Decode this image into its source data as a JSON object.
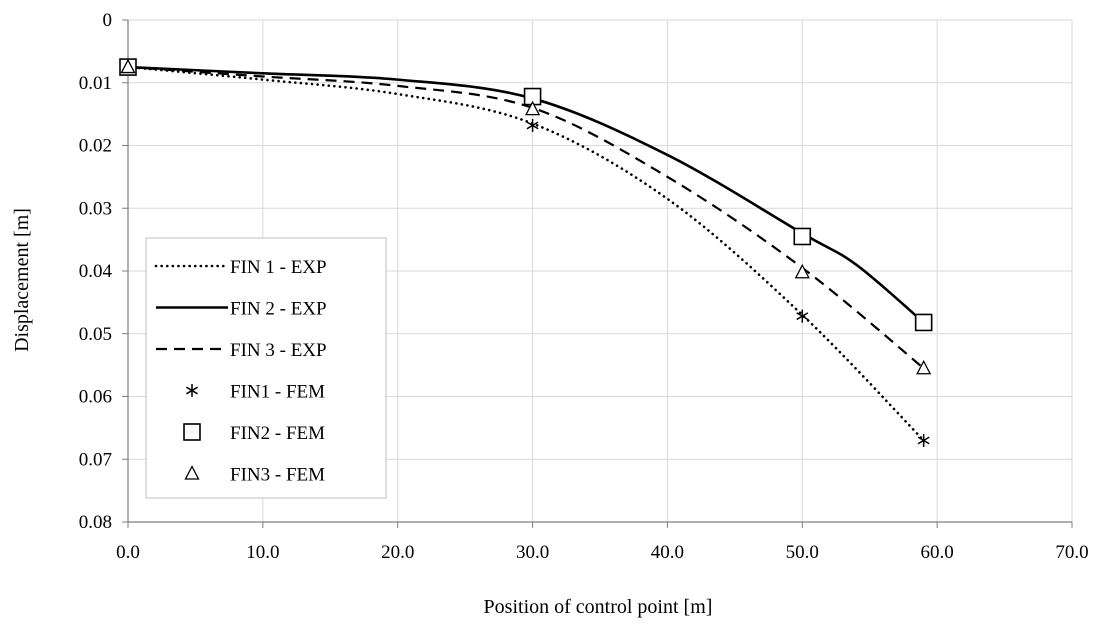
{
  "chart_data": {
    "type": "scatter",
    "title": "",
    "xlabel": "Position of control point [m]",
    "ylabel": "Displacement [m]",
    "xlim": [
      0,
      70
    ],
    "ylim": [
      0,
      0.08
    ],
    "y_inverted": true,
    "grid": true,
    "legend_position": "left",
    "x_ticks": [
      "0.0",
      "10.0",
      "20.0",
      "30.0",
      "40.0",
      "50.0",
      "60.0",
      "70.0"
    ],
    "y_ticks": [
      "0",
      "0.01",
      "0.02",
      "0.03",
      "0.04",
      "0.05",
      "0.06",
      "0.07",
      "0.08"
    ],
    "series": [
      {
        "name": "FIN 1 - EXP",
        "kind": "line",
        "style": "dotted",
        "x": [
          0,
          10,
          20,
          30,
          40,
          50,
          59
        ],
        "y": [
          0.0075,
          0.0095,
          0.0118,
          0.0165,
          0.0285,
          0.047,
          0.067
        ]
      },
      {
        "name": "FIN 2 - EXP",
        "kind": "line",
        "style": "solid",
        "x": [
          0,
          10,
          20,
          30,
          40,
          50,
          54,
          59
        ],
        "y": [
          0.0075,
          0.0085,
          0.0095,
          0.0125,
          0.0215,
          0.034,
          0.039,
          0.0482
        ]
      },
      {
        "name": "FIN 3 - EXP",
        "kind": "line",
        "style": "dashed",
        "x": [
          0,
          10,
          20,
          30,
          40,
          50,
          59
        ],
        "y": [
          0.0075,
          0.009,
          0.0105,
          0.014,
          0.025,
          0.0395,
          0.0555
        ]
      },
      {
        "name": "FIN1 - FEM",
        "kind": "marker",
        "marker": "asterisk",
        "x": [
          0,
          30,
          50,
          59
        ],
        "y": [
          0.0075,
          0.0168,
          0.0472,
          0.067
        ]
      },
      {
        "name": "FIN2 - FEM",
        "kind": "marker",
        "marker": "square",
        "x": [
          0,
          30,
          50,
          59
        ],
        "y": [
          0.0075,
          0.0122,
          0.0345,
          0.0482
        ]
      },
      {
        "name": "FIN3 - FEM",
        "kind": "marker",
        "marker": "triangle",
        "x": [
          0,
          30,
          50,
          59
        ],
        "y": [
          0.0075,
          0.0142,
          0.0402,
          0.0555
        ]
      }
    ]
  }
}
